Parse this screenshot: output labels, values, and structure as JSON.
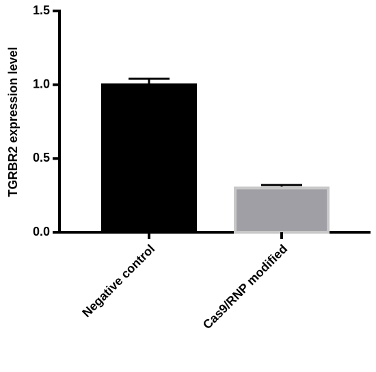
{
  "chart_data": {
    "type": "bar",
    "ylabel": "TGRBR2 expression level",
    "categories": [
      "Negative control",
      "Cas9/RNP modified"
    ],
    "values": [
      1.0,
      0.3
    ],
    "errors": [
      0.04,
      0.02
    ],
    "colors": [
      "#000000",
      "#a09fa5"
    ],
    "ylim": [
      0,
      1.5
    ],
    "yticks": [
      {
        "value": 0,
        "label": "0.0"
      },
      0.5,
      {
        "value": 1,
        "label": "1.0"
      },
      1.5
    ]
  }
}
